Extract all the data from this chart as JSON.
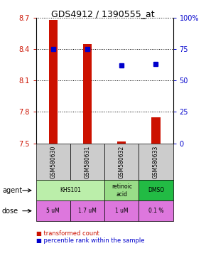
{
  "title": "GDS4912 / 1390555_at",
  "samples": [
    "GSM580630",
    "GSM580631",
    "GSM580632",
    "GSM580633"
  ],
  "bar_values": [
    8.68,
    8.45,
    7.52,
    7.75
  ],
  "bar_bottom": 7.5,
  "percentile_values": [
    75,
    75,
    62,
    63
  ],
  "ylim": [
    7.5,
    8.7
  ],
  "y_ticks": [
    7.5,
    7.8,
    8.1,
    8.4,
    8.7
  ],
  "right_ylim": [
    0,
    100
  ],
  "right_ticks": [
    0,
    25,
    50,
    75,
    100
  ],
  "right_tick_labels": [
    "0",
    "25",
    "50",
    "75",
    "100%"
  ],
  "bar_color": "#cc1100",
  "dot_color": "#0000cc",
  "dose_labels": [
    "5 uM",
    "1.7 uM",
    "1 uM",
    "0.1 %"
  ],
  "dose_color": "#dd77dd",
  "sample_bg_color": "#cccccc",
  "left_tick_color": "#cc1100",
  "right_tick_color": "#0000cc",
  "agent_data": [
    [
      0,
      2,
      "KHS101",
      "#bbeeaa"
    ],
    [
      2,
      3,
      "retinoic\nacid",
      "#99dd88"
    ],
    [
      3,
      4,
      "DMSO",
      "#22bb44"
    ]
  ]
}
